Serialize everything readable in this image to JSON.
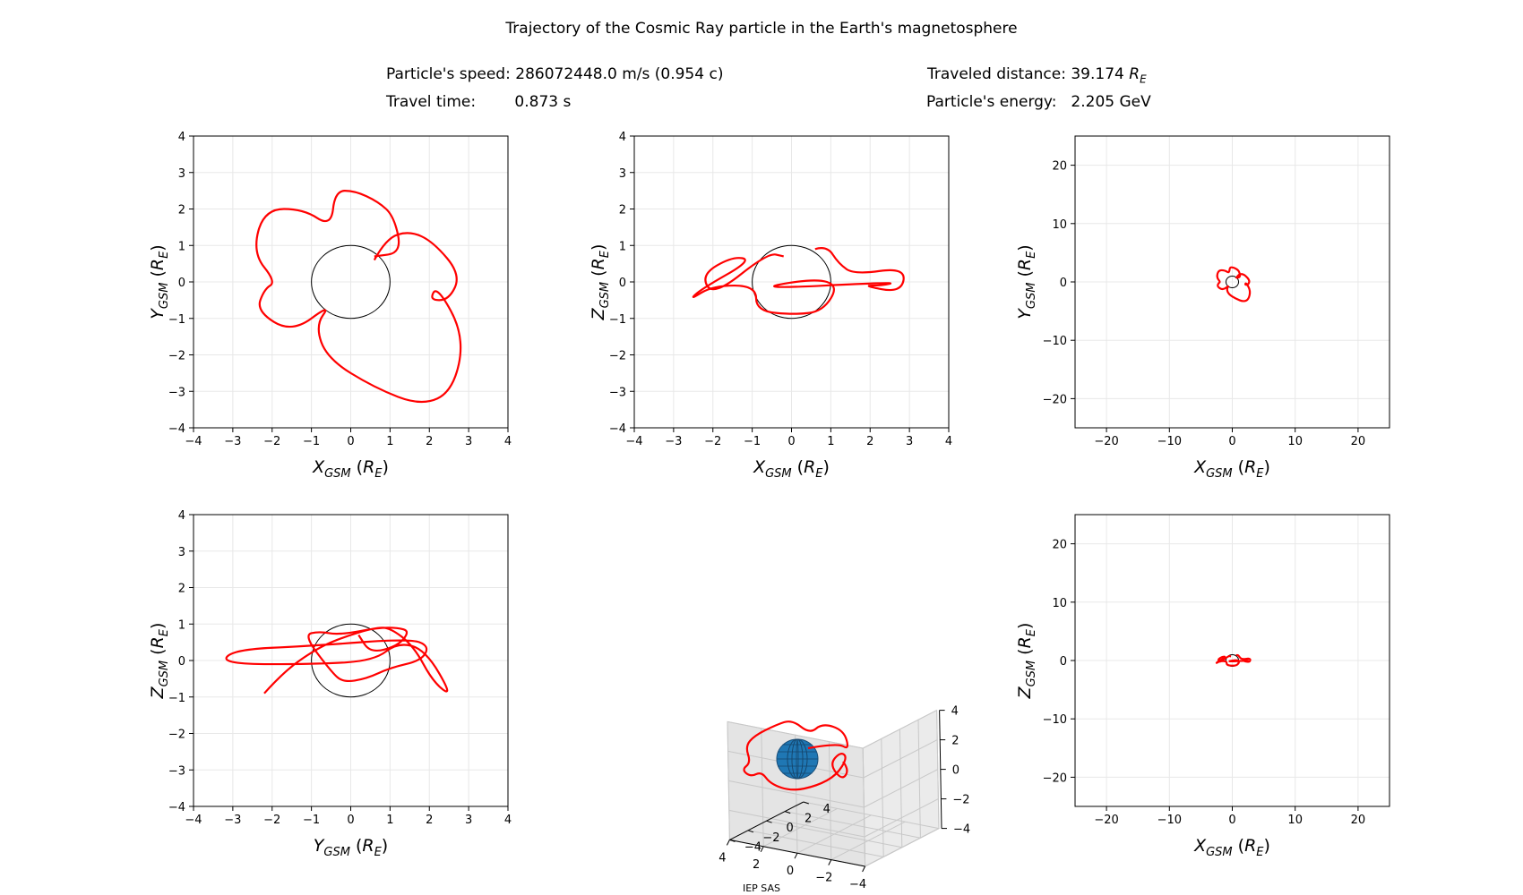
{
  "header": {
    "title": "Trajectory of the Cosmic Ray particle in the Earth's magnetosphere",
    "speed_label": "Particle's speed:",
    "speed_value": "286072448.0 m/s (0.954 c)",
    "distance_label": "Traveled distance:",
    "distance_value": "39.174",
    "distance_unit": "R_E",
    "time_label": "Travel time:",
    "time_value": "0.873 s",
    "energy_label": "Particle's energy:",
    "energy_value": "2.205 GeV"
  },
  "footer": {
    "text": "IEP SAS"
  },
  "colors": {
    "trajectory": "#ff0000",
    "earth_outline": "#000000",
    "earth_3d": "#1f77b4",
    "grid": "#e8e8e8"
  },
  "chart_data": [
    {
      "type": "line",
      "panel": "xy-zoom",
      "xlabel": "X_GSM (R_E)",
      "ylabel": "Y_GSM (R_E)",
      "xlim": [
        -4,
        4
      ],
      "ylim": [
        -4,
        4
      ],
      "xticks": [
        -4,
        -3,
        -2,
        -1,
        0,
        1,
        2,
        3,
        4
      ],
      "yticks": [
        -4,
        -3,
        -2,
        -1,
        0,
        1,
        2,
        3,
        4
      ],
      "grid": true,
      "earth_circle_radius": 1,
      "series": [
        {
          "x": [
            0.6,
            0.9,
            1.5,
            2.1,
            2.8,
            2.5,
            2.0,
            2.2,
            2.9,
            2.6,
            1.8,
            0.6,
            -0.6,
            -0.9,
            -0.5,
            -1.5,
            -2.4,
            -2.2,
            -1.9,
            -2.5,
            -2.2,
            -1.2,
            -0.5,
            -0.4,
            0.1,
            0.7,
            1.1,
            1.3,
            0.6
          ],
          "y": [
            0.6,
            1.2,
            1.4,
            1.1,
            0.2,
            -0.5,
            -0.5,
            -0.1,
            -1.5,
            -3.0,
            -3.4,
            -2.9,
            -2.1,
            -1.2,
            -0.6,
            -1.4,
            -0.8,
            -0.2,
            0.0,
            0.8,
            2.0,
            2.0,
            1.5,
            2.5,
            2.5,
            2.2,
            1.8,
            0.8,
            0.7
          ]
        }
      ]
    },
    {
      "type": "line",
      "panel": "xz-zoom",
      "xlabel": "X_GSM (R_E)",
      "ylabel": "Z_GSM (R_E)",
      "xlim": [
        -4,
        4
      ],
      "ylim": [
        -4,
        4
      ],
      "xticks": [
        -4,
        -3,
        -2,
        -1,
        0,
        1,
        2,
        3,
        4
      ],
      "yticks": [
        -4,
        -3,
        -2,
        -1,
        0,
        1,
        2,
        3,
        4
      ],
      "grid": true,
      "earth_circle_radius": 1,
      "series": [
        {
          "x": [
            0.6,
            0.9,
            1.2,
            1.6,
            2.9,
            2.8,
            1.8,
            2.3,
            2.7,
            -1.0,
            0.6,
            1.2,
            0.8,
            0.1,
            -0.9,
            -0.9,
            -2.0,
            -2.6,
            -2.3,
            -1.0,
            -1.5,
            -2.3,
            -2.0,
            -0.6,
            -0.2
          ],
          "y": [
            0.9,
            1.0,
            0.5,
            0.2,
            0.4,
            -0.3,
            -0.1,
            -0.1,
            0.0,
            -0.2,
            0.1,
            -0.1,
            -0.8,
            -0.9,
            -0.8,
            -0.1,
            -0.1,
            -0.5,
            -0.2,
            0.6,
            0.7,
            0.2,
            -0.4,
            0.8,
            0.7
          ]
        }
      ]
    },
    {
      "type": "line",
      "panel": "xy-wide",
      "xlabel": "X_GSM (R_E)",
      "ylabel": "Y_GSM (R_E)",
      "xlim": [
        -25,
        25
      ],
      "ylim": [
        -25,
        25
      ],
      "xticks": [
        -20,
        -10,
        0,
        10,
        20
      ],
      "yticks": [
        -20,
        -10,
        0,
        10,
        20
      ],
      "grid": true,
      "earth_circle_radius": 1,
      "series": [
        {
          "x": [
            0.6,
            0.9,
            1.5,
            2.1,
            2.8,
            2.5,
            2.0,
            2.2,
            2.9,
            2.6,
            1.8,
            0.6,
            -0.6,
            -0.9,
            -0.5,
            -1.5,
            -2.4,
            -2.2,
            -1.9,
            -2.5,
            -2.2,
            -1.2,
            -0.5,
            -0.4,
            0.1,
            0.7,
            1.1,
            1.3,
            0.6
          ],
          "y": [
            0.6,
            1.2,
            1.4,
            1.1,
            0.2,
            -0.5,
            -0.5,
            -0.1,
            -1.5,
            -3.0,
            -3.4,
            -2.9,
            -2.1,
            -1.2,
            -0.6,
            -1.4,
            -0.8,
            -0.2,
            0.0,
            0.8,
            2.0,
            2.0,
            1.5,
            2.5,
            2.5,
            2.2,
            1.8,
            0.8,
            0.7
          ]
        }
      ]
    },
    {
      "type": "line",
      "panel": "yz-zoom",
      "xlabel": "Y_GSM (R_E)",
      "ylabel": "Z_GSM (R_E)",
      "xlim": [
        -4,
        4
      ],
      "ylim": [
        -4,
        4
      ],
      "xticks": [
        -4,
        -3,
        -2,
        -1,
        0,
        1,
        2,
        3,
        4
      ],
      "yticks": [
        -4,
        -3,
        -2,
        -1,
        0,
        1,
        2,
        3,
        4
      ],
      "grid": true,
      "earth_circle_radius": 1,
      "series": [
        {
          "x": [
            -2.2,
            -1.7,
            -0.9,
            -0.3,
            0.6,
            1.0,
            1.6,
            2.1,
            2.6,
            1.9,
            1.2,
            0.6,
            -0.8,
            -3.3,
            -3.0,
            -1.0,
            1.5,
            2.0,
            1.8,
            1.0,
            0.4,
            -0.2,
            -0.5,
            -1.2,
            -0.8,
            -0.3,
            0.7,
            1.2,
            1.5,
            1.2,
            0.5,
            0.2
          ],
          "y": [
            -0.9,
            -0.3,
            0.3,
            0.6,
            0.9,
            0.9,
            0.4,
            -0.6,
            -1.0,
            0.3,
            0.5,
            0.0,
            -0.1,
            -0.1,
            0.3,
            0.4,
            0.6,
            0.4,
            0.0,
            -0.2,
            -0.5,
            -0.6,
            -0.3,
            0.7,
            0.8,
            0.7,
            0.9,
            0.9,
            0.8,
            0.4,
            0.2,
            0.7
          ]
        }
      ]
    },
    {
      "type": "line",
      "panel": "3d",
      "xlim": [
        -4,
        4
      ],
      "ylim": [
        -4,
        4
      ],
      "zlim": [
        -4,
        4
      ],
      "xticks": [
        -4,
        -2,
        0,
        2,
        4
      ],
      "yticks": [
        -4,
        -2,
        0,
        2,
        4
      ],
      "zticks": [
        -4,
        -2,
        0,
        2,
        4
      ],
      "grid": true
    },
    {
      "type": "line",
      "panel": "xz-wide",
      "xlabel": "X_GSM (R_E)",
      "ylabel": "Z_GSM (R_E)",
      "xlim": [
        -25,
        25
      ],
      "ylim": [
        -25,
        25
      ],
      "xticks": [
        -20,
        -10,
        0,
        10,
        20
      ],
      "yticks": [
        -20,
        -10,
        0,
        10,
        20
      ],
      "grid": true,
      "earth_circle_radius": 1,
      "series": [
        {
          "x": [
            0.6,
            0.9,
            1.2,
            1.6,
            2.9,
            2.8,
            1.8,
            2.3,
            2.7,
            -1.0,
            0.6,
            1.2,
            0.8,
            0.1,
            -0.9,
            -0.9,
            -2.0,
            -2.6,
            -2.3,
            -1.0,
            -1.5,
            -2.3,
            -2.0,
            -0.6,
            -0.2
          ],
          "y": [
            0.9,
            1.0,
            0.5,
            0.2,
            0.4,
            -0.3,
            -0.1,
            -0.1,
            0.0,
            -0.2,
            0.1,
            -0.1,
            -0.8,
            -0.9,
            -0.8,
            -0.1,
            -0.1,
            -0.5,
            -0.2,
            0.6,
            0.7,
            0.2,
            -0.4,
            0.8,
            0.7
          ]
        }
      ]
    }
  ]
}
